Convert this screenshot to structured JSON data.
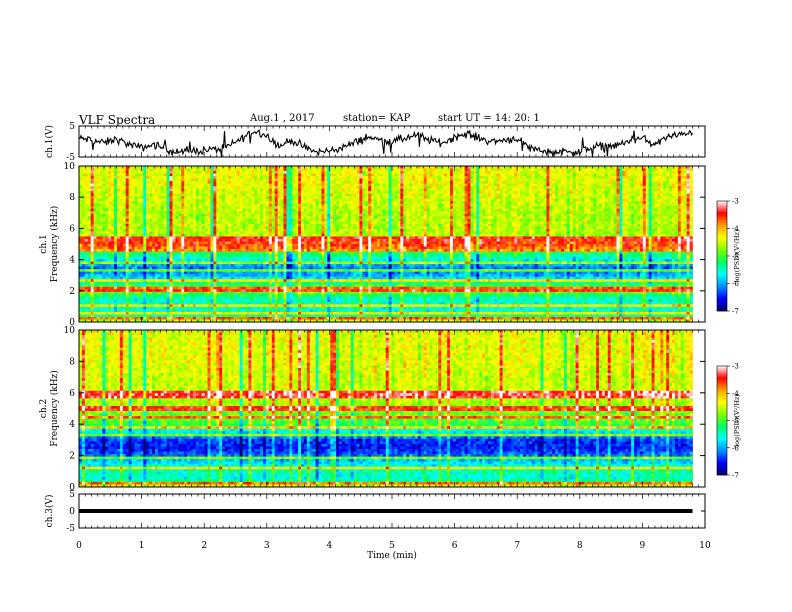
{
  "header": {
    "title": "VLF Spectra",
    "date": "Aug.1 , 2017",
    "station": "station= KAP",
    "start": "start UT = 14: 20: 1"
  },
  "chart_data": [
    {
      "type": "line",
      "name": "ch1-waveform",
      "ylabel": "ch.1(V)",
      "ylim": [
        -5,
        5
      ],
      "yticks": [
        "5",
        "-5"
      ],
      "xlim": [
        0,
        10
      ],
      "x": [
        0,
        0.2,
        0.4,
        0.6,
        0.8,
        1.0,
        1.2,
        1.4,
        1.6,
        1.8,
        2.0,
        2.2,
        2.4,
        2.6,
        2.8,
        3.0,
        3.2,
        3.4,
        3.6,
        3.8,
        4.0,
        4.2,
        4.4,
        4.6,
        4.8,
        5.0,
        5.2,
        5.4,
        5.6,
        5.8,
        6.0,
        6.2,
        6.4,
        6.6,
        6.8,
        7.0,
        7.2,
        7.4,
        7.6,
        7.8,
        8.0,
        8.2,
        8.4,
        8.6,
        8.8,
        9.0,
        9.2,
        9.4,
        9.6,
        9.8
      ],
      "values": [
        1.0,
        0.5,
        -0.5,
        0.8,
        -1.0,
        -2.0,
        -1.0,
        -2.5,
        -3.5,
        -3.0,
        -2.8,
        -2.5,
        -1.5,
        1.0,
        3.5,
        2.0,
        -1.5,
        0.5,
        -2.0,
        -3.5,
        -3.0,
        -2.0,
        -0.5,
        1.5,
        0.5,
        0.0,
        1.0,
        2.0,
        0.5,
        -0.5,
        1.5,
        2.5,
        1.0,
        0.0,
        0.5,
        1.0,
        -2.0,
        -3.0,
        -3.5,
        -3.0,
        -3.5,
        -2.0,
        -1.0,
        -1.5,
        0.5,
        1.0,
        -1.0,
        1.5,
        2.0,
        3.5
      ]
    },
    {
      "type": "heatmap",
      "name": "ch1-spectrogram",
      "ylabel": "ch.1",
      "ylabel2": "Frequency (kHz)",
      "ylim": [
        0,
        10
      ],
      "yticks": [
        "0",
        "2",
        "4",
        "6",
        "8",
        "10"
      ],
      "xlim": [
        0,
        10
      ],
      "xdata_extent": [
        0,
        9.8
      ],
      "colorbar": {
        "label": "log(PSD)(V²/Hz)",
        "range": [
          -7,
          -3
        ],
        "ticks": [
          "-3",
          "-4",
          "-5",
          "-6",
          "-7"
        ]
      },
      "profile_freq_khz": [
        0,
        0.5,
        1,
        1.5,
        2,
        2.5,
        3,
        3.5,
        4,
        4.5,
        5,
        5.5,
        6,
        7,
        8,
        9,
        10
      ],
      "profile_log_psd": [
        -4.3,
        -5.6,
        -5.5,
        -5.5,
        -4.7,
        -5.3,
        -6.0,
        -6.2,
        -5.6,
        -5.1,
        -4.8,
        -4.6,
        -4.6,
        -4.6,
        -4.5,
        -4.4,
        -4.4
      ],
      "tones_khz": [
        0.3,
        0.5,
        1.0,
        2.1,
        2.7,
        3.3,
        3.8,
        4.6,
        4.8,
        5.0,
        5.2,
        5.4
      ]
    },
    {
      "type": "heatmap",
      "name": "ch2-spectrogram",
      "ylabel": "ch.2",
      "ylabel2": "Frequency (kHz)",
      "ylim": [
        0,
        10
      ],
      "yticks": [
        "0",
        "2",
        "4",
        "6",
        "8",
        "10"
      ],
      "xlim": [
        0,
        10
      ],
      "xdata_extent": [
        0,
        9.8
      ],
      "colorbar": {
        "label": "log(PSD)(V²/Hz)",
        "range": [
          -7,
          -3
        ],
        "ticks": [
          "-3",
          "-4",
          "-5",
          "-6",
          "-7"
        ]
      },
      "profile_freq_khz": [
        0,
        0.5,
        1,
        1.5,
        2,
        2.5,
        3,
        3.5,
        4,
        4.5,
        5,
        5.5,
        6,
        7,
        8,
        9,
        10
      ],
      "profile_log_psd": [
        -4.3,
        -5.6,
        -5.4,
        -5.7,
        -6.2,
        -6.5,
        -6.4,
        -5.7,
        -5.0,
        -4.9,
        -4.7,
        -4.6,
        -4.5,
        -4.5,
        -4.4,
        -4.4,
        -4.4
      ],
      "tones_khz": [
        0.3,
        1.2,
        1.8,
        3.3,
        3.8,
        4.4,
        4.9,
        5.1,
        5.8,
        6.0
      ]
    },
    {
      "type": "line",
      "name": "ch3-waveform",
      "ylabel": "ch.3(V)",
      "ylim": [
        -5,
        5
      ],
      "yticks": [
        "5",
        "0",
        "-5"
      ],
      "xlim": [
        0,
        10
      ],
      "x": [
        0,
        9.8
      ],
      "values": [
        0,
        0
      ],
      "xlabel": "Time (min)",
      "xticks": [
        "0",
        "1",
        "2",
        "3",
        "4",
        "5",
        "6",
        "7",
        "8",
        "9",
        "10"
      ]
    }
  ],
  "colors": {
    "colormap": [
      "#00006a",
      "#0000ff",
      "#0090ff",
      "#00ffff",
      "#00ff60",
      "#80ff00",
      "#ffff00",
      "#ffa000",
      "#ff0000",
      "#ffffff"
    ],
    "axis": "#000000",
    "trace": "#000000"
  }
}
